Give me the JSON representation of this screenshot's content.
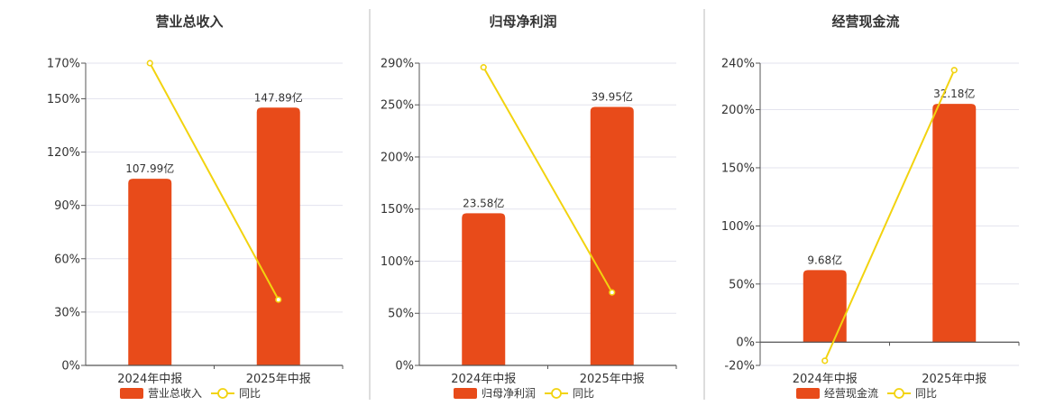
{
  "colors": {
    "bar": "#E84B1A",
    "line": "#F2D30F",
    "grid": "#E3E3EE",
    "axis": "#555555",
    "divider": "#BBBBBB",
    "text": "#333333"
  },
  "chart_data": [
    {
      "type": "bar",
      "title": "营业总收入",
      "categories": [
        "2024年中报",
        "2025年中报"
      ],
      "bar_values": [
        105,
        145
      ],
      "bar_labels": [
        "107.99亿",
        "147.89亿"
      ],
      "line_values": [
        170,
        37
      ],
      "ylim": [
        0,
        170
      ],
      "yticks": [
        0,
        30,
        60,
        90,
        120,
        150,
        170
      ],
      "ytick_labels": [
        "0%",
        "30%",
        "60%",
        "90%",
        "120%",
        "150%",
        "170%"
      ],
      "legend": [
        "营业总收入",
        "同比"
      ]
    },
    {
      "type": "bar",
      "title": "归母净利润",
      "categories": [
        "2024年中报",
        "2025年中报"
      ],
      "bar_values": [
        146,
        248
      ],
      "bar_labels": [
        "23.58亿",
        "39.95亿"
      ],
      "line_values": [
        286,
        70
      ],
      "ylim": [
        0,
        290
      ],
      "yticks": [
        0,
        50,
        100,
        150,
        200,
        250,
        290
      ],
      "ytick_labels": [
        "0%",
        "50%",
        "100%",
        "150%",
        "200%",
        "250%",
        "290%"
      ],
      "legend": [
        "归母净利润",
        "同比"
      ]
    },
    {
      "type": "bar",
      "title": "经营现金流",
      "categories": [
        "2024年中报",
        "2025年中报"
      ],
      "bar_values": [
        62,
        205
      ],
      "bar_labels": [
        "9.68亿",
        "32.18亿"
      ],
      "line_values": [
        -16,
        234
      ],
      "ylim": [
        -20,
        240
      ],
      "yticks": [
        -20,
        0,
        50,
        100,
        150,
        200,
        240
      ],
      "ytick_labels": [
        "-20%",
        "0%",
        "50%",
        "100%",
        "150%",
        "200%",
        "240%"
      ],
      "legend": [
        "经营现金流",
        "同比"
      ]
    }
  ]
}
